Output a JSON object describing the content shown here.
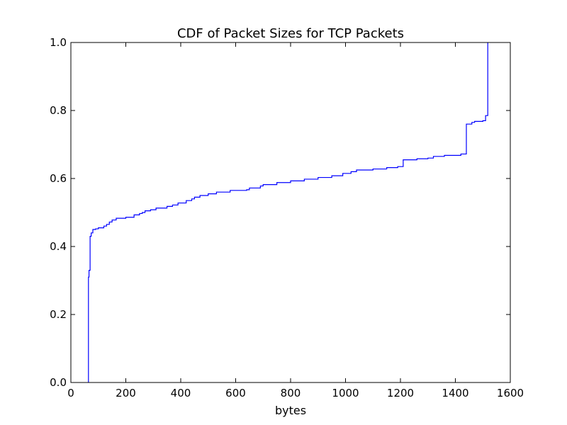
{
  "chart_data": {
    "type": "line",
    "title": "CDF of Packet Sizes for TCP Packets",
    "xlabel": "bytes",
    "ylabel": "",
    "xlim": [
      0,
      1600
    ],
    "ylim": [
      0.0,
      1.0
    ],
    "grid": false,
    "legend": "none",
    "xticks": [
      0,
      200,
      400,
      600,
      800,
      1000,
      1200,
      1400,
      1600
    ],
    "xtick_labels": [
      "0",
      "200",
      "400",
      "600",
      "800",
      "1000",
      "1200",
      "1400",
      "1600"
    ],
    "yticks": [
      0.0,
      0.2,
      0.4,
      0.6,
      0.8,
      1.0
    ],
    "ytick_labels": [
      "0.0",
      "0.2",
      "0.4",
      "0.6",
      "0.8",
      "1.0"
    ],
    "line_color": "#0000ff",
    "series": [
      {
        "x": [
          64,
          64,
          66,
          66,
          70,
          70,
          74,
          74,
          80,
          80,
          90,
          90,
          100,
          100,
          120,
          120,
          130,
          130,
          140,
          140,
          150,
          150,
          165,
          165,
          200,
          200,
          230,
          230,
          250,
          250,
          260,
          260,
          270,
          270,
          290,
          290,
          310,
          310,
          350,
          350,
          370,
          370,
          390,
          390,
          420,
          420,
          440,
          440,
          450,
          450,
          470,
          470,
          500,
          500,
          530,
          530,
          580,
          580,
          640,
          640,
          650,
          650,
          690,
          690,
          700,
          700,
          750,
          750,
          800,
          800,
          850,
          850,
          900,
          900,
          950,
          950,
          990,
          990,
          1020,
          1020,
          1040,
          1040,
          1100,
          1100,
          1150,
          1150,
          1190,
          1190,
          1210,
          1210,
          1260,
          1260,
          1300,
          1300,
          1320,
          1320,
          1360,
          1360,
          1420,
          1420,
          1440,
          1440,
          1460,
          1460,
          1470,
          1470,
          1500,
          1500,
          1510,
          1510,
          1518,
          1518
        ],
        "y": [
          0.0,
          0.31,
          0.31,
          0.33,
          0.33,
          0.43,
          0.43,
          0.44,
          0.44,
          0.45,
          0.45,
          0.452,
          0.452,
          0.455,
          0.455,
          0.46,
          0.46,
          0.465,
          0.465,
          0.472,
          0.472,
          0.478,
          0.478,
          0.483,
          0.483,
          0.486,
          0.486,
          0.493,
          0.493,
          0.497,
          0.497,
          0.5,
          0.5,
          0.505,
          0.505,
          0.508,
          0.508,
          0.513,
          0.513,
          0.518,
          0.518,
          0.522,
          0.522,
          0.528,
          0.528,
          0.535,
          0.535,
          0.54,
          0.54,
          0.545,
          0.545,
          0.55,
          0.55,
          0.555,
          0.555,
          0.56,
          0.56,
          0.565,
          0.565,
          0.567,
          0.567,
          0.572,
          0.572,
          0.578,
          0.578,
          0.582,
          0.582,
          0.588,
          0.588,
          0.593,
          0.593,
          0.598,
          0.598,
          0.603,
          0.603,
          0.608,
          0.608,
          0.615,
          0.615,
          0.62,
          0.62,
          0.625,
          0.625,
          0.628,
          0.628,
          0.632,
          0.632,
          0.635,
          0.635,
          0.655,
          0.655,
          0.658,
          0.658,
          0.66,
          0.66,
          0.665,
          0.665,
          0.668,
          0.668,
          0.672,
          0.672,
          0.76,
          0.76,
          0.765,
          0.765,
          0.768,
          0.768,
          0.77,
          0.77,
          0.785,
          0.785,
          1.0
        ]
      }
    ]
  }
}
